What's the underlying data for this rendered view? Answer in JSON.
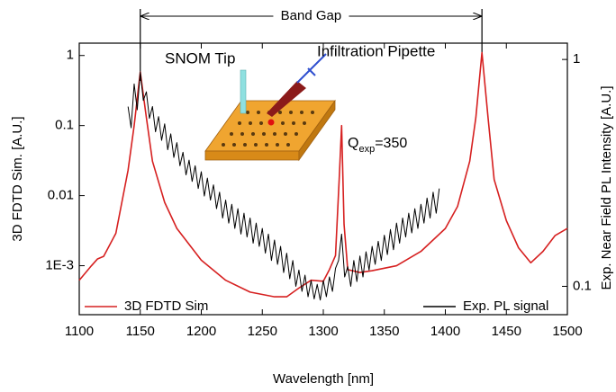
{
  "chart_data": {
    "type": "line",
    "xlabel": "Wavelength [nm]",
    "ylabel": "3D FDTD Sim. [A.U.]",
    "y2label": "Exp. Near Field PL Intensity [A.U.]",
    "xlim": [
      1100,
      1500
    ],
    "xticks": [
      1100,
      1150,
      1200,
      1250,
      1300,
      1350,
      1400,
      1450,
      1500
    ],
    "ylim": [
      0.0002,
      1.5
    ],
    "yticks": [
      {
        "value": 0.001,
        "label": "1E-3"
      },
      0.01,
      0.1,
      1
    ],
    "y2lim": [
      0.075,
      1.18
    ],
    "y2ticks": [
      0.1,
      1
    ],
    "yscale": "log",
    "y2scale": "log",
    "band_gap": {
      "label": "Band Gap",
      "range": [
        1150,
        1430
      ]
    },
    "annotations": {
      "tip": "SNOM Tip",
      "pipette": "Infiltration Pipette",
      "q": "Q",
      "q_sub": "exp",
      "q_value": "=350"
    },
    "series": [
      {
        "name": "3D FDTD Sim",
        "color": "#d62020",
        "axis": "y",
        "legend_corner": "lower left",
        "x": [
          1100,
          1110,
          1115,
          1120,
          1130,
          1140,
          1145,
          1150,
          1155,
          1160,
          1170,
          1180,
          1200,
          1220,
          1240,
          1260,
          1270,
          1280,
          1290,
          1300,
          1305,
          1310,
          1313,
          1315,
          1317,
          1320,
          1330,
          1340,
          1360,
          1380,
          1400,
          1410,
          1420,
          1425,
          1430,
          1435,
          1440,
          1450,
          1460,
          1470,
          1480,
          1490,
          1500
        ],
        "values": [
          0.00062,
          0.001,
          0.00125,
          0.00136,
          0.0029,
          0.023,
          0.1,
          0.58,
          0.13,
          0.031,
          0.008,
          0.0034,
          0.0012,
          0.00062,
          0.00042,
          0.00036,
          0.00036,
          0.00048,
          0.00062,
          0.0006,
          0.00088,
          0.0014,
          0.017,
          0.1,
          0.0039,
          0.00088,
          0.0008,
          0.00085,
          0.001,
          0.0016,
          0.0034,
          0.007,
          0.031,
          0.13,
          1.1,
          0.13,
          0.017,
          0.0044,
          0.0018,
          0.0011,
          0.0016,
          0.0027,
          0.0034
        ]
      },
      {
        "name": "Exp. PL signal",
        "color": "#000000",
        "axis": "y2",
        "legend_corner": "lower right",
        "x": [
          1140,
          1142.5,
          1145,
          1147.5,
          1150,
          1152.5,
          1155,
          1157.5,
          1160,
          1162.5,
          1165,
          1167.5,
          1170,
          1172.5,
          1175,
          1177.5,
          1180,
          1182.5,
          1185,
          1187.5,
          1190,
          1192.5,
          1195,
          1197.5,
          1200,
          1202.5,
          1205,
          1207.5,
          1210,
          1212.5,
          1215,
          1217.5,
          1220,
          1222.5,
          1225,
          1227.5,
          1230,
          1232.5,
          1235,
          1237.5,
          1240,
          1242.5,
          1245,
          1247.5,
          1250,
          1252.5,
          1255,
          1257.5,
          1260,
          1262.5,
          1265,
          1267.5,
          1270,
          1272.5,
          1275,
          1277.5,
          1280,
          1282.5,
          1285,
          1287.5,
          1290,
          1292.5,
          1295,
          1297.5,
          1300,
          1302.5,
          1305,
          1307.5,
          1310,
          1312.5,
          1315,
          1317.5,
          1320,
          1322.5,
          1325,
          1327.5,
          1330,
          1332.5,
          1335,
          1337.5,
          1340,
          1342.5,
          1345,
          1347.5,
          1350,
          1352.5,
          1355,
          1357.5,
          1360,
          1362.5,
          1365,
          1367.5,
          1370,
          1372.5,
          1375,
          1377.5,
          1380,
          1382.5,
          1385,
          1387.5,
          1390,
          1392.5,
          1395
        ],
        "values": [
          0.62,
          0.5,
          0.78,
          0.6,
          0.88,
          0.66,
          0.72,
          0.55,
          0.62,
          0.48,
          0.56,
          0.44,
          0.52,
          0.4,
          0.47,
          0.37,
          0.43,
          0.34,
          0.39,
          0.31,
          0.36,
          0.29,
          0.34,
          0.27,
          0.32,
          0.25,
          0.3,
          0.24,
          0.28,
          0.22,
          0.26,
          0.2,
          0.24,
          0.19,
          0.23,
          0.18,
          0.22,
          0.17,
          0.21,
          0.165,
          0.2,
          0.155,
          0.19,
          0.15,
          0.18,
          0.14,
          0.17,
          0.13,
          0.16,
          0.125,
          0.15,
          0.115,
          0.14,
          0.108,
          0.13,
          0.1,
          0.118,
          0.095,
          0.112,
          0.09,
          0.106,
          0.088,
          0.102,
          0.087,
          0.106,
          0.09,
          0.11,
          0.095,
          0.12,
          0.13,
          0.17,
          0.11,
          0.122,
          0.1,
          0.13,
          0.105,
          0.136,
          0.11,
          0.142,
          0.118,
          0.15,
          0.125,
          0.158,
          0.13,
          0.168,
          0.138,
          0.178,
          0.145,
          0.19,
          0.155,
          0.2,
          0.165,
          0.21,
          0.172,
          0.22,
          0.18,
          0.23,
          0.19,
          0.245,
          0.2,
          0.26,
          0.21,
          0.27
        ]
      }
    ]
  }
}
